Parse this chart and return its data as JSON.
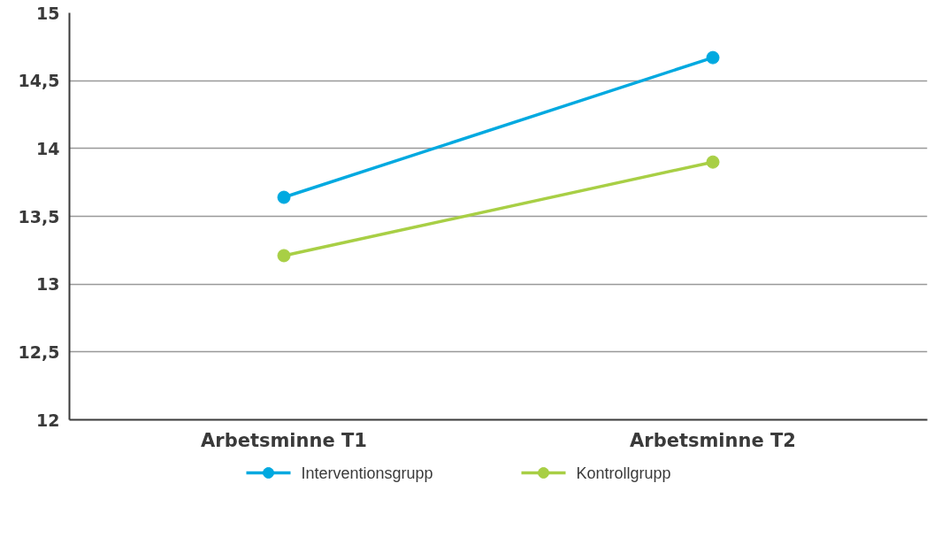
{
  "chart_data": {
    "type": "line",
    "categories": [
      "Arbetsminne T1",
      "Arbetsminne T2"
    ],
    "series": [
      {
        "name": "Interventionsgrupp",
        "color": "#00a9e0",
        "values": [
          13.64,
          14.67
        ]
      },
      {
        "name": "Kontrollgrupp",
        "color": "#a8cf45",
        "values": [
          13.21,
          13.9
        ]
      }
    ],
    "ylim": [
      12,
      15
    ],
    "yticks": [
      12,
      {
        "value": 12.5,
        "label": "12,5"
      },
      13,
      {
        "value": 13.5,
        "label": "13,5"
      },
      14,
      {
        "value": 14.5,
        "label": "14,5"
      },
      15
    ],
    "grid": "y",
    "legend": "bottom",
    "marker": "circle",
    "line_style": "solid"
  }
}
